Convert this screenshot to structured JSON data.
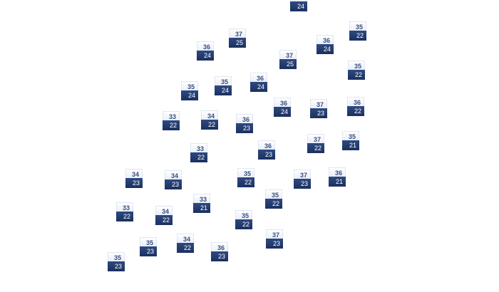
{
  "markers": [
    {
      "high": "",
      "low": "24"
    },
    {
      "high": "37",
      "low": "25"
    },
    {
      "high": "36",
      "low": "24"
    },
    {
      "high": "36",
      "low": "24"
    },
    {
      "high": "35",
      "low": "22"
    },
    {
      "high": "37",
      "low": "25"
    },
    {
      "high": "35",
      "low": "22"
    },
    {
      "high": "35",
      "low": "24"
    },
    {
      "high": "35",
      "low": "24"
    },
    {
      "high": "36",
      "low": "24"
    },
    {
      "high": "36",
      "low": "24"
    },
    {
      "high": "37",
      "low": "23"
    },
    {
      "high": "36",
      "low": "22"
    },
    {
      "high": "33",
      "low": "22"
    },
    {
      "high": "34",
      "low": "22"
    },
    {
      "high": "36",
      "low": "23"
    },
    {
      "high": "36",
      "low": "23"
    },
    {
      "high": "37",
      "low": "22"
    },
    {
      "high": "35",
      "low": "21"
    },
    {
      "high": "33",
      "low": "22"
    },
    {
      "high": "34",
      "low": "23"
    },
    {
      "high": "34",
      "low": "23"
    },
    {
      "high": "35",
      "low": "22"
    },
    {
      "high": "37",
      "low": "23"
    },
    {
      "high": "36",
      "low": "21"
    },
    {
      "high": "33",
      "low": "21"
    },
    {
      "high": "35",
      "low": "22"
    },
    {
      "high": "33",
      "low": "22"
    },
    {
      "high": "34",
      "low": "22"
    },
    {
      "high": "35",
      "low": "22"
    },
    {
      "high": "34",
      "low": "22"
    },
    {
      "high": "36",
      "low": "23"
    },
    {
      "high": "37",
      "low": "23"
    },
    {
      "high": "35",
      "low": "23"
    },
    {
      "high": "35",
      "low": "23"
    }
  ],
  "colors": {
    "high_bg": "#eef2fa",
    "high_text": "#3a4f7f",
    "low_bg": "#1f3566",
    "low_text": "#ffffff"
  }
}
